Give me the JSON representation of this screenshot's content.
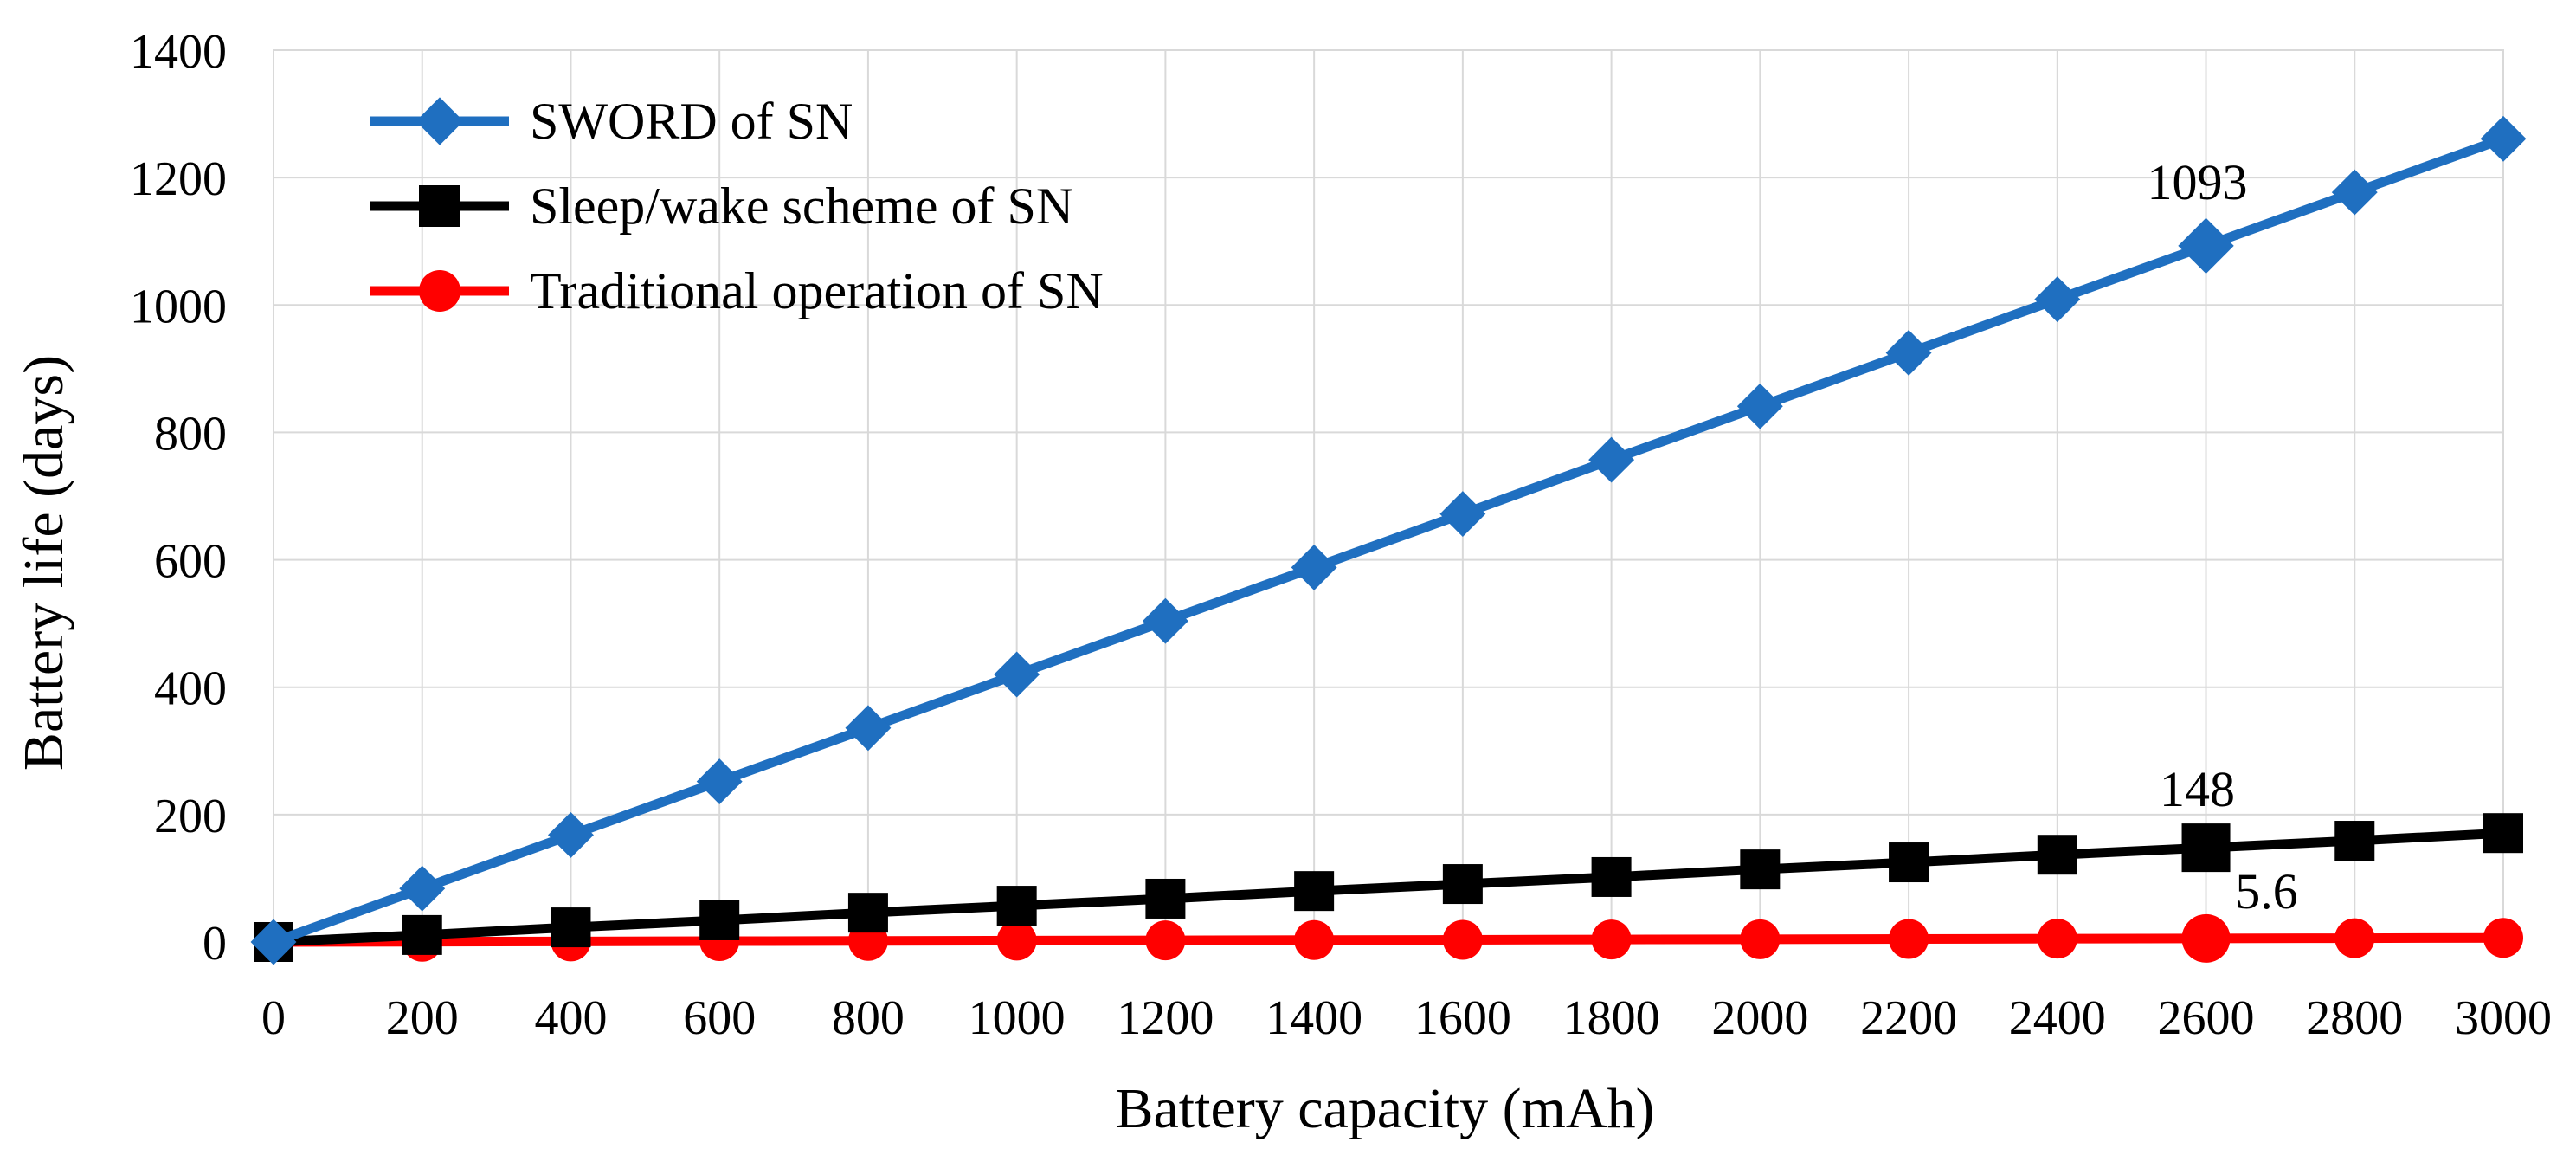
{
  "chart_data": {
    "type": "line",
    "title": "",
    "xlabel": "Battery capacity (mAh)",
    "ylabel": "Battery life (days)",
    "x": [
      0,
      200,
      400,
      600,
      800,
      1000,
      1200,
      1400,
      1600,
      1800,
      2000,
      2200,
      2400,
      2600,
      2800,
      3000
    ],
    "xlim": [
      0,
      3000
    ],
    "ylim": [
      0,
      1400
    ],
    "xticks": [
      "0",
      "200",
      "400",
      "600",
      "800",
      "1000",
      "1200",
      "1400",
      "1600",
      "1800",
      "2000",
      "2200",
      "2400",
      "2600",
      "2800",
      "3000"
    ],
    "yticks": [
      "0",
      "200",
      "400",
      "600",
      "800",
      "1000",
      "1200",
      "1400"
    ],
    "grid": true,
    "legend_position": "top-left",
    "series": [
      {
        "name": "SWORD of SN",
        "color": "#1F6FC0",
        "marker": "diamond",
        "values": [
          0,
          84,
          168,
          252,
          336,
          420,
          504,
          588,
          672,
          757,
          841,
          925,
          1009,
          1093,
          1177,
          1261
        ]
      },
      {
        "name": "Sleep/wake scheme of SN",
        "color": "#000000",
        "marker": "square",
        "values": [
          0,
          11,
          23,
          34,
          46,
          57,
          68,
          80,
          91,
          102,
          114,
          125,
          137,
          148,
          159,
          171
        ]
      },
      {
        "name": "Traditional operation of SN",
        "color": "#FF0000",
        "marker": "circle",
        "values": [
          0,
          0.4,
          0.9,
          1.3,
          1.7,
          2.2,
          2.6,
          3.0,
          3.4,
          3.9,
          4.3,
          4.7,
          5.2,
          5.6,
          6.0,
          6.5
        ]
      }
    ],
    "annotations": [
      {
        "text": "1093",
        "series": 0,
        "x": 2600
      },
      {
        "text": "148",
        "series": 1,
        "x": 2600
      },
      {
        "text": "5.6",
        "series": 2,
        "x": 2600
      }
    ]
  }
}
